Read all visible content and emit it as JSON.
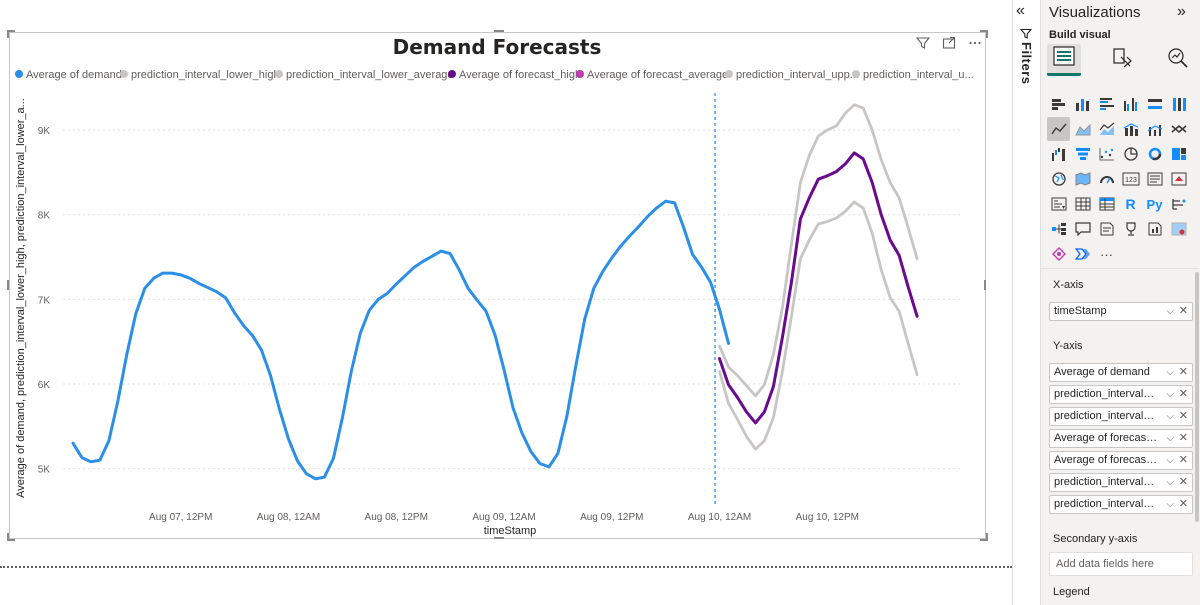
{
  "chart_data": {
    "type": "line",
    "title": "Demand Forecasts",
    "xlabel": "timeStamp",
    "ylabel": "Average of demand, prediction_interval_lower_high, prediction_interval_lower_a...",
    "x_ticks": [
      "Aug 07, 12PM",
      "Aug 08, 12AM",
      "Aug 08, 12PM",
      "Aug 09, 12AM",
      "Aug 09, 12PM",
      "Aug 10, 12AM",
      "Aug 10, 12PM"
    ],
    "y_ticks": [
      "5K",
      "6K",
      "7K",
      "8K",
      "9K"
    ],
    "ylim": [
      4700,
      9450
    ],
    "xlim": [
      -2,
      99
    ],
    "x_tick_hours": [
      12,
      24,
      36,
      48,
      60,
      72,
      84
    ],
    "forecast_start_hour": 71.5,
    "legend": [
      "Average of demand",
      "prediction_interval_lower_high",
      "prediction_interval_lower_average",
      "Average of forecast_high",
      "Average of forecast_average",
      "prediction_interval_upp...",
      "prediction_interval_u..."
    ],
    "series": [
      {
        "name": "Average of demand",
        "color": "#2b8fe8",
        "x_start": 0,
        "x_step": 1,
        "values": [
          5300,
          5130,
          5080,
          5100,
          5330,
          5800,
          6350,
          6830,
          7130,
          7250,
          7310,
          7310,
          7290,
          7250,
          7190,
          7140,
          7090,
          7020,
          6840,
          6690,
          6570,
          6400,
          6100,
          5700,
          5350,
          5090,
          4940,
          4880,
          4900,
          5120,
          5600,
          6150,
          6600,
          6870,
          7000,
          7070,
          7180,
          7280,
          7380,
          7450,
          7510,
          7570,
          7540,
          7350,
          7130,
          6990,
          6860,
          6580,
          6170,
          5720,
          5420,
          5200,
          5060,
          5020,
          5180,
          5620,
          6220,
          6770,
          7130,
          7330,
          7490,
          7630,
          7750,
          7860,
          7980,
          8080,
          8160,
          8140,
          7850,
          7530,
          7380,
          7200,
          6880,
          6480
        ]
      },
      {
        "name": "Average of forecast_high",
        "color": "#6a0a8c",
        "x_start": 72,
        "x_step": 1,
        "values": [
          6300,
          5990,
          5840,
          5670,
          5540,
          5670,
          5970,
          6550,
          7200,
          7950,
          8200,
          8420,
          8460,
          8510,
          8600,
          8730,
          8660,
          8380,
          8000,
          7700,
          7520,
          7150,
          6800
        ]
      },
      {
        "name": "prediction_interval_upper",
        "color": "#c8c6c4",
        "x_start": 72,
        "x_step": 1,
        "values": [
          6450,
          6200,
          6100,
          5980,
          5860,
          5990,
          6350,
          6900,
          7650,
          8380,
          8700,
          8930,
          9000,
          9050,
          9200,
          9300,
          9260,
          9000,
          8650,
          8380,
          8200,
          7850,
          7480
        ]
      },
      {
        "name": "prediction_interval_lower",
        "color": "#c8c6c4",
        "x_start": 72,
        "x_step": 1,
        "values": [
          6150,
          5770,
          5580,
          5380,
          5230,
          5330,
          5600,
          6150,
          6800,
          7480,
          7700,
          7890,
          7920,
          7960,
          8040,
          8150,
          8080,
          7780,
          7350,
          7020,
          6860,
          6480,
          6110
        ]
      }
    ]
  },
  "visual_header": {
    "filter_icon": "filter-icon",
    "focus_icon": "focus-mode-icon",
    "more_icon": "more-options-icon"
  },
  "filters": {
    "label": "Filters",
    "collapse_glyph": "«"
  },
  "viz_pane": {
    "title": "Visualizations",
    "expand_glyph": "»",
    "build_label": "Build visual",
    "x_axis_label": "X-axis",
    "x_axis_field": "timeStamp",
    "y_axis_label": "Y-axis",
    "y_axis_fields": [
      "Average of demand",
      "prediction_interval_lo...",
      "prediction_interval_lo...",
      "Average of forecast_h...",
      "Average of forecast_a...",
      "prediction_interval_up...",
      "prediction_interval_up..."
    ],
    "secondary_label": "Secondary y-axis",
    "add_placeholder": "Add data fields here",
    "legend_label": "Legend",
    "gallery_text": {
      "r_visual": "R",
      "py_visual": "Py",
      "card_visual": "123",
      "more": "···"
    }
  }
}
